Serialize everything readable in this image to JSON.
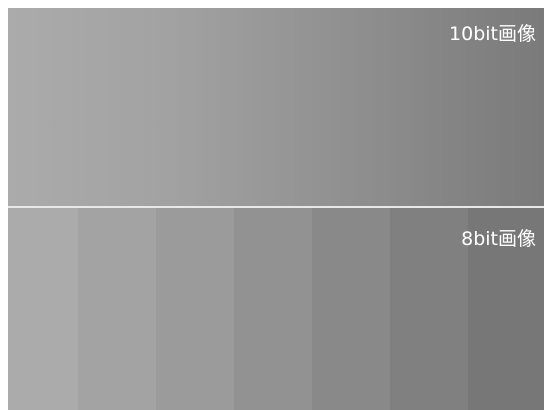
{
  "panels": {
    "top": {
      "label": "10bit画像",
      "gradient": [
        "#ababab",
        "#a2a2a2",
        "#8f8f8f",
        "#7a7a7a"
      ]
    },
    "bottom": {
      "label": "8bit画像",
      "bands": [
        "#ababab",
        "#a3a3a3",
        "#9b9b9b",
        "#929292",
        "#898989",
        "#808080",
        "#777777"
      ]
    }
  }
}
